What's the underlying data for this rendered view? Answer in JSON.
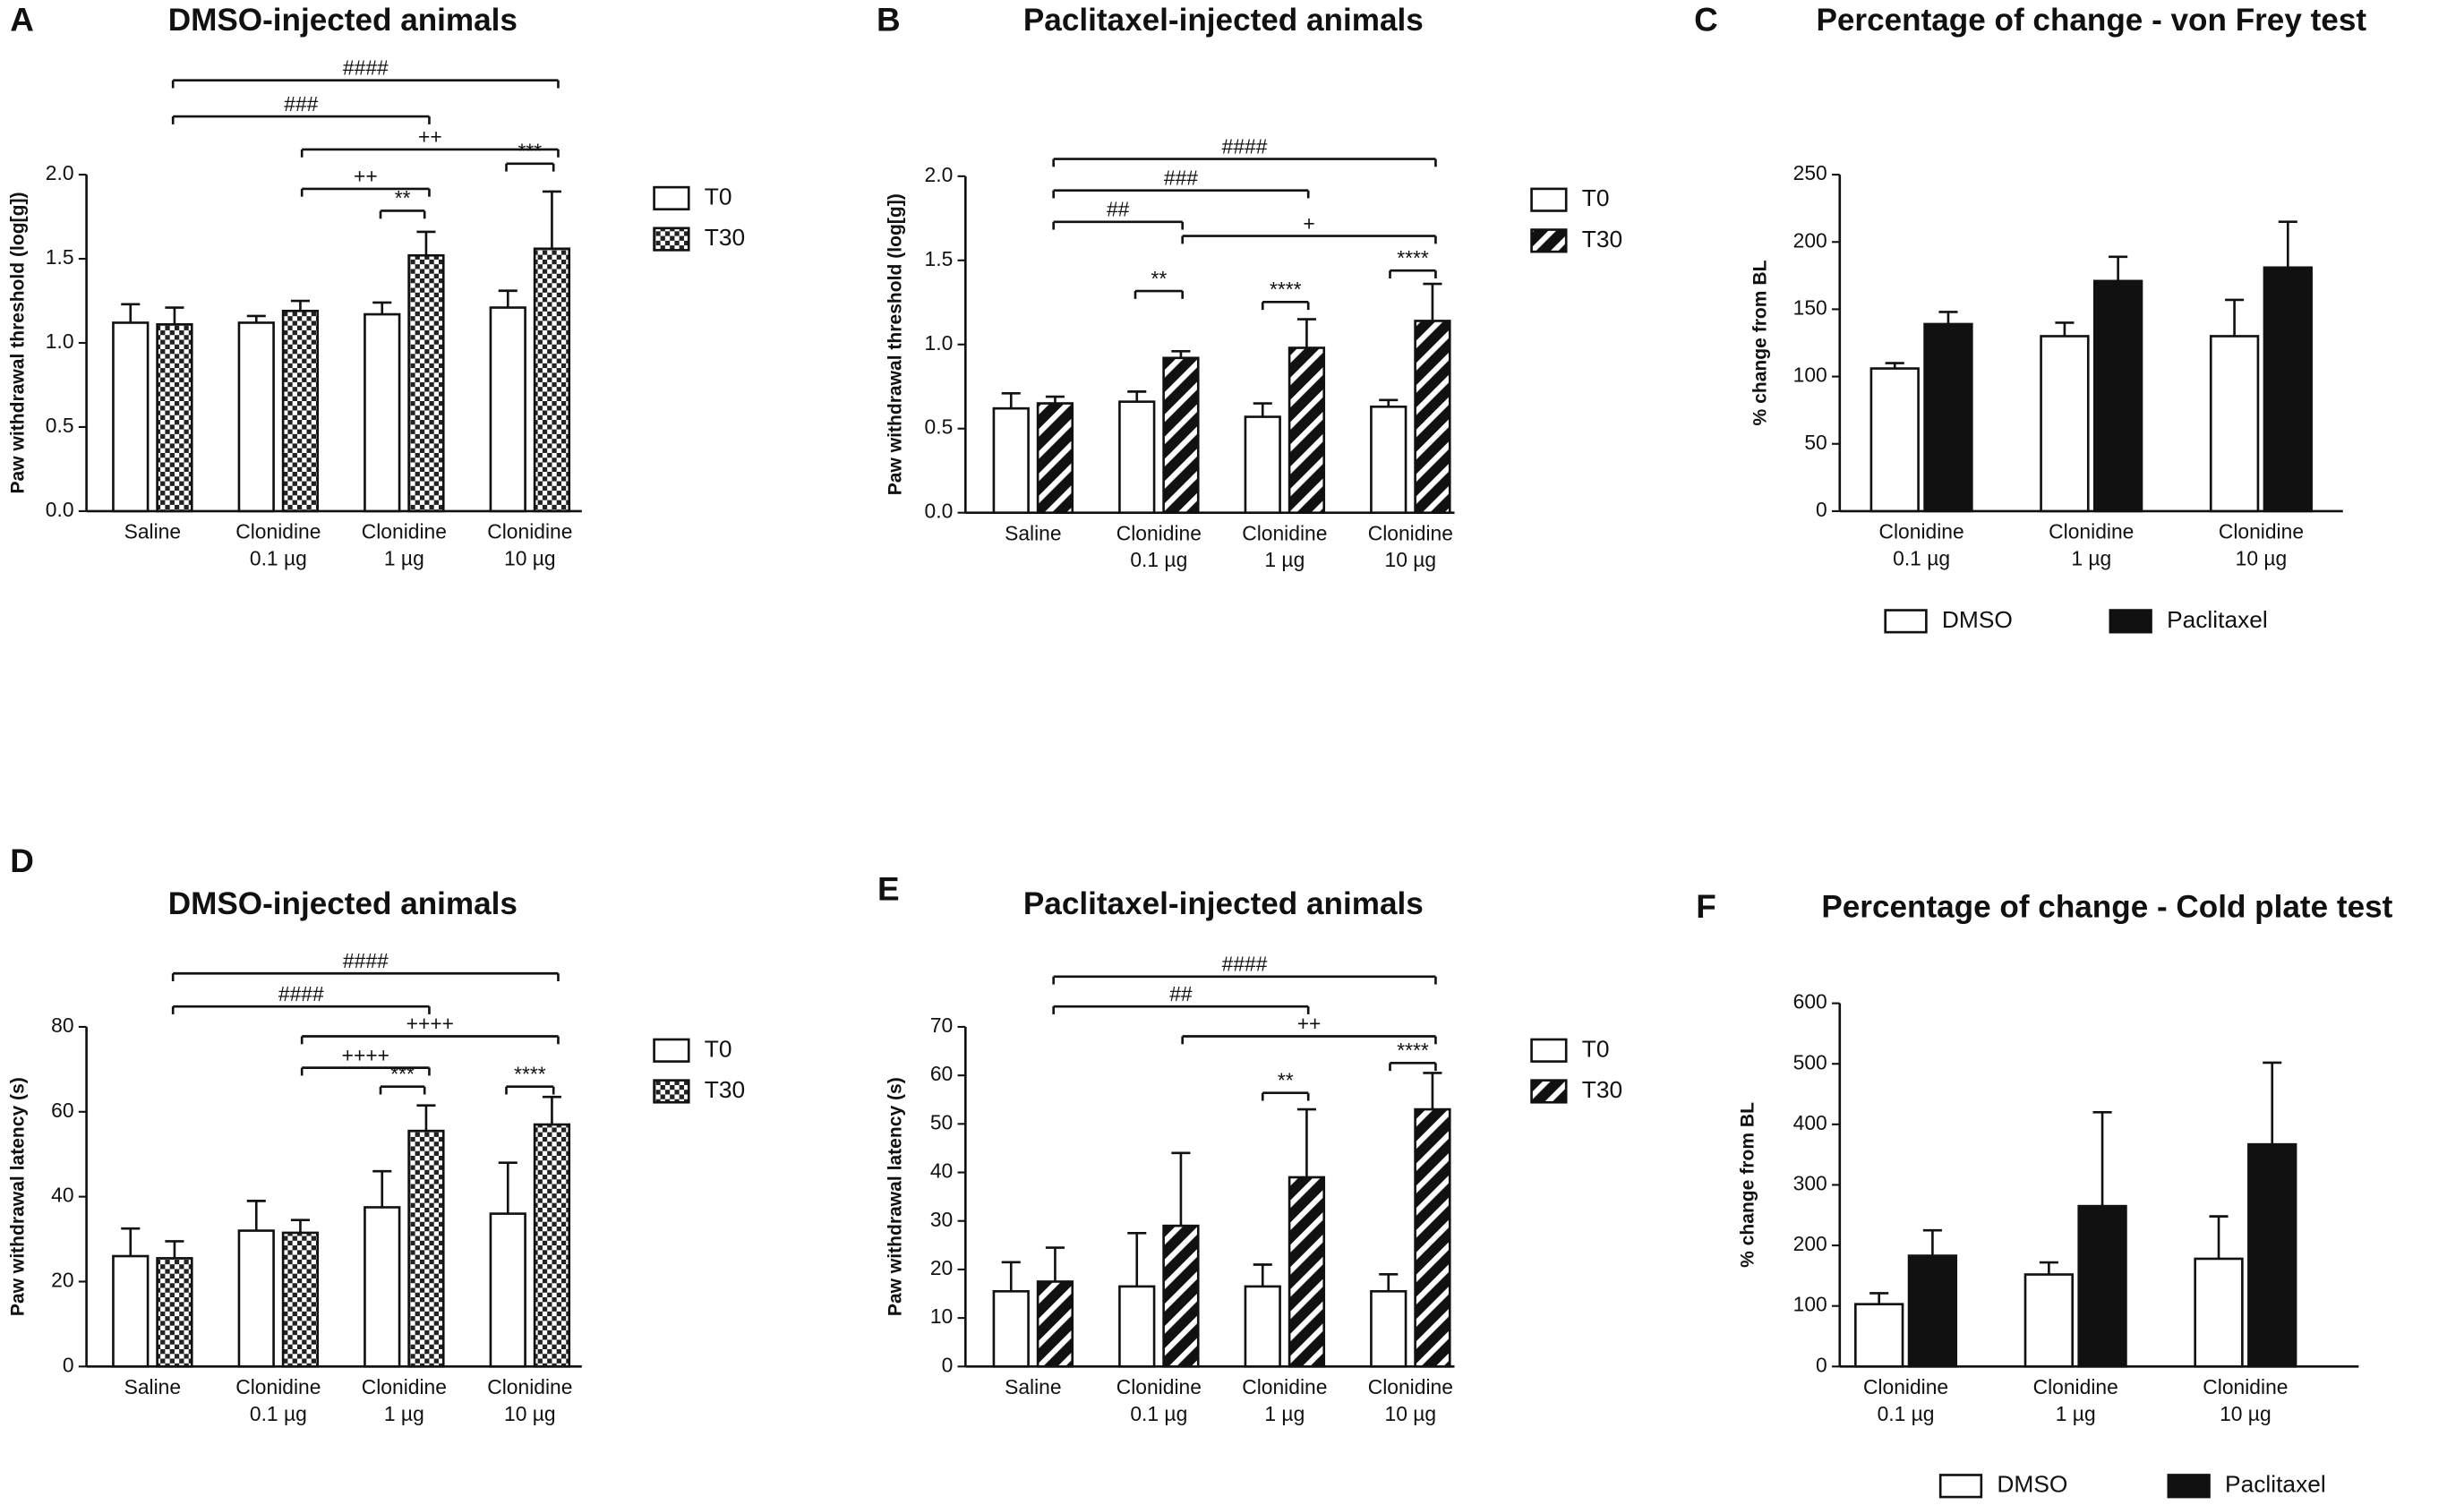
{
  "chart_data": [
    {
      "type": "bar",
      "label": "A",
      "title": "DMSO-injected animals",
      "ylabel": "Paw withdrawal threshold (log[g])",
      "categories": [
        [
          "Saline"
        ],
        [
          "Clonidine",
          "0.1 µg"
        ],
        [
          "Clonidine",
          "1 µg"
        ],
        [
          "Clonidine",
          "10 µg"
        ]
      ],
      "series": [
        {
          "name": "T0",
          "fill": "white",
          "values": [
            1.12,
            1.12,
            1.17,
            1.21
          ],
          "errors": [
            0.11,
            0.04,
            0.07,
            0.1
          ]
        },
        {
          "name": "T30",
          "fill": "checkered",
          "values": [
            1.11,
            1.19,
            1.52,
            1.56
          ],
          "errors": [
            0.1,
            0.06,
            0.14,
            0.34
          ]
        }
      ],
      "ylim": [
        0,
        2.0
      ],
      "yticks": [
        {
          "value": 0,
          "label": "0.0"
        },
        {
          "value": 0.5,
          "label": "0.5"
        },
        {
          "value": 1,
          "label": "1.0"
        },
        {
          "value": 1.5,
          "label": "1.5"
        },
        {
          "value": 2,
          "label": "2.0"
        }
      ],
      "legend": "right",
      "annotations": [
        "####",
        "###",
        "++",
        "++",
        "**",
        "***"
      ]
    },
    {
      "type": "bar",
      "label": "B",
      "title": "Paclitaxel-injected animals",
      "ylabel": "Paw withdrawal threshold (log[g])",
      "categories": [
        [
          "Saline"
        ],
        [
          "Clonidine",
          "0.1 µg"
        ],
        [
          "Clonidine",
          "1 µg"
        ],
        [
          "Clonidine",
          "10 µg"
        ]
      ],
      "series": [
        {
          "name": "T0",
          "fill": "white",
          "values": [
            0.62,
            0.66,
            0.57,
            0.63
          ],
          "errors": [
            0.09,
            0.06,
            0.08,
            0.04
          ]
        },
        {
          "name": "T30",
          "fill": "hatched",
          "values": [
            0.65,
            0.92,
            0.98,
            1.14
          ],
          "errors": [
            0.04,
            0.04,
            0.17,
            0.22
          ]
        }
      ],
      "ylim": [
        0,
        2.0
      ],
      "yticks": [
        {
          "value": 0,
          "label": "0.0"
        },
        {
          "value": 0.5,
          "label": "0.5"
        },
        {
          "value": 1,
          "label": "1.0"
        },
        {
          "value": 1.5,
          "label": "1.5"
        },
        {
          "value": 2,
          "label": "2.0"
        }
      ],
      "legend": "right",
      "annotations": [
        "####",
        "###",
        "##",
        "+",
        "**",
        "****",
        "****"
      ]
    },
    {
      "type": "bar",
      "label": "C",
      "title": "Percentage of change - von Frey test",
      "ylabel": "% change from BL",
      "categories": [
        [
          "Clonidine",
          "0.1 µg"
        ],
        [
          "Clonidine",
          "1 µg"
        ],
        [
          "Clonidine",
          "10 µg"
        ]
      ],
      "series": [
        {
          "name": "DMSO",
          "fill": "white",
          "values": [
            106,
            130,
            130
          ],
          "errors": [
            4,
            10,
            27
          ]
        },
        {
          "name": "Paclitaxel",
          "fill": "black",
          "values": [
            139,
            171,
            181
          ],
          "errors": [
            9,
            18,
            34
          ]
        }
      ],
      "ylim": [
        0,
        250
      ],
      "yticks": [
        0,
        50,
        100,
        150,
        200,
        250
      ],
      "legend": "bottom",
      "annotations": []
    },
    {
      "type": "bar",
      "label": "D",
      "title": "DMSO-injected animals",
      "ylabel": "Paw withdrawal latency (s)",
      "categories": [
        [
          "Saline"
        ],
        [
          "Clonidine",
          "0.1 µg"
        ],
        [
          "Clonidine",
          "1 µg"
        ],
        [
          "Clonidine",
          "10 µg"
        ]
      ],
      "series": [
        {
          "name": "T0",
          "fill": "white",
          "values": [
            26,
            32,
            37.5,
            36
          ],
          "errors": [
            6.5,
            7,
            8.5,
            12
          ]
        },
        {
          "name": "T30",
          "fill": "checkered",
          "values": [
            25.5,
            31.5,
            55.5,
            57
          ],
          "errors": [
            4,
            3,
            6,
            6.5
          ]
        }
      ],
      "ylim": [
        0,
        80
      ],
      "yticks": [
        0,
        20,
        40,
        60,
        80
      ],
      "legend": "right",
      "annotations": [
        "####",
        "####",
        "++++",
        "++++",
        "***",
        "****"
      ]
    },
    {
      "type": "bar",
      "label": "E",
      "title": "Paclitaxel-injected animals",
      "ylabel": "Paw withdrawal latency (s)",
      "categories": [
        [
          "Saline"
        ],
        [
          "Clonidine",
          "0.1 µg"
        ],
        [
          "Clonidine",
          "1 µg"
        ],
        [
          "Clonidine",
          "10 µg"
        ]
      ],
      "series": [
        {
          "name": "T0",
          "fill": "white",
          "values": [
            15.5,
            16.5,
            16.5,
            15.5
          ],
          "errors": [
            6,
            11,
            4.5,
            3.5
          ]
        },
        {
          "name": "T30",
          "fill": "hatched",
          "values": [
            17.5,
            29,
            39,
            53
          ],
          "errors": [
            7,
            15,
            14,
            7.5
          ]
        }
      ],
      "ylim": [
        0,
        70
      ],
      "yticks": [
        0,
        10,
        20,
        30,
        40,
        50,
        60,
        70
      ],
      "legend": "right",
      "annotations": [
        "####",
        "##",
        "++",
        "**",
        "****"
      ]
    },
    {
      "type": "bar",
      "label": "F",
      "title": "Percentage of change - Cold plate test",
      "ylabel": "% change from BL",
      "categories": [
        [
          "Clonidine",
          "0.1 µg"
        ],
        [
          "Clonidine",
          "1 µg"
        ],
        [
          "Clonidine",
          "10 µg"
        ]
      ],
      "series": [
        {
          "name": "DMSO",
          "fill": "white",
          "values": [
            103,
            152,
            178
          ],
          "errors": [
            18,
            20,
            70
          ]
        },
        {
          "name": "Paclitaxel",
          "fill": "black",
          "values": [
            183,
            265,
            367
          ],
          "errors": [
            42,
            155,
            135
          ]
        }
      ],
      "ylim": [
        0,
        600
      ],
      "yticks": [
        0,
        100,
        200,
        300,
        400,
        500,
        600
      ],
      "legend": "bottom",
      "annotations": []
    }
  ]
}
